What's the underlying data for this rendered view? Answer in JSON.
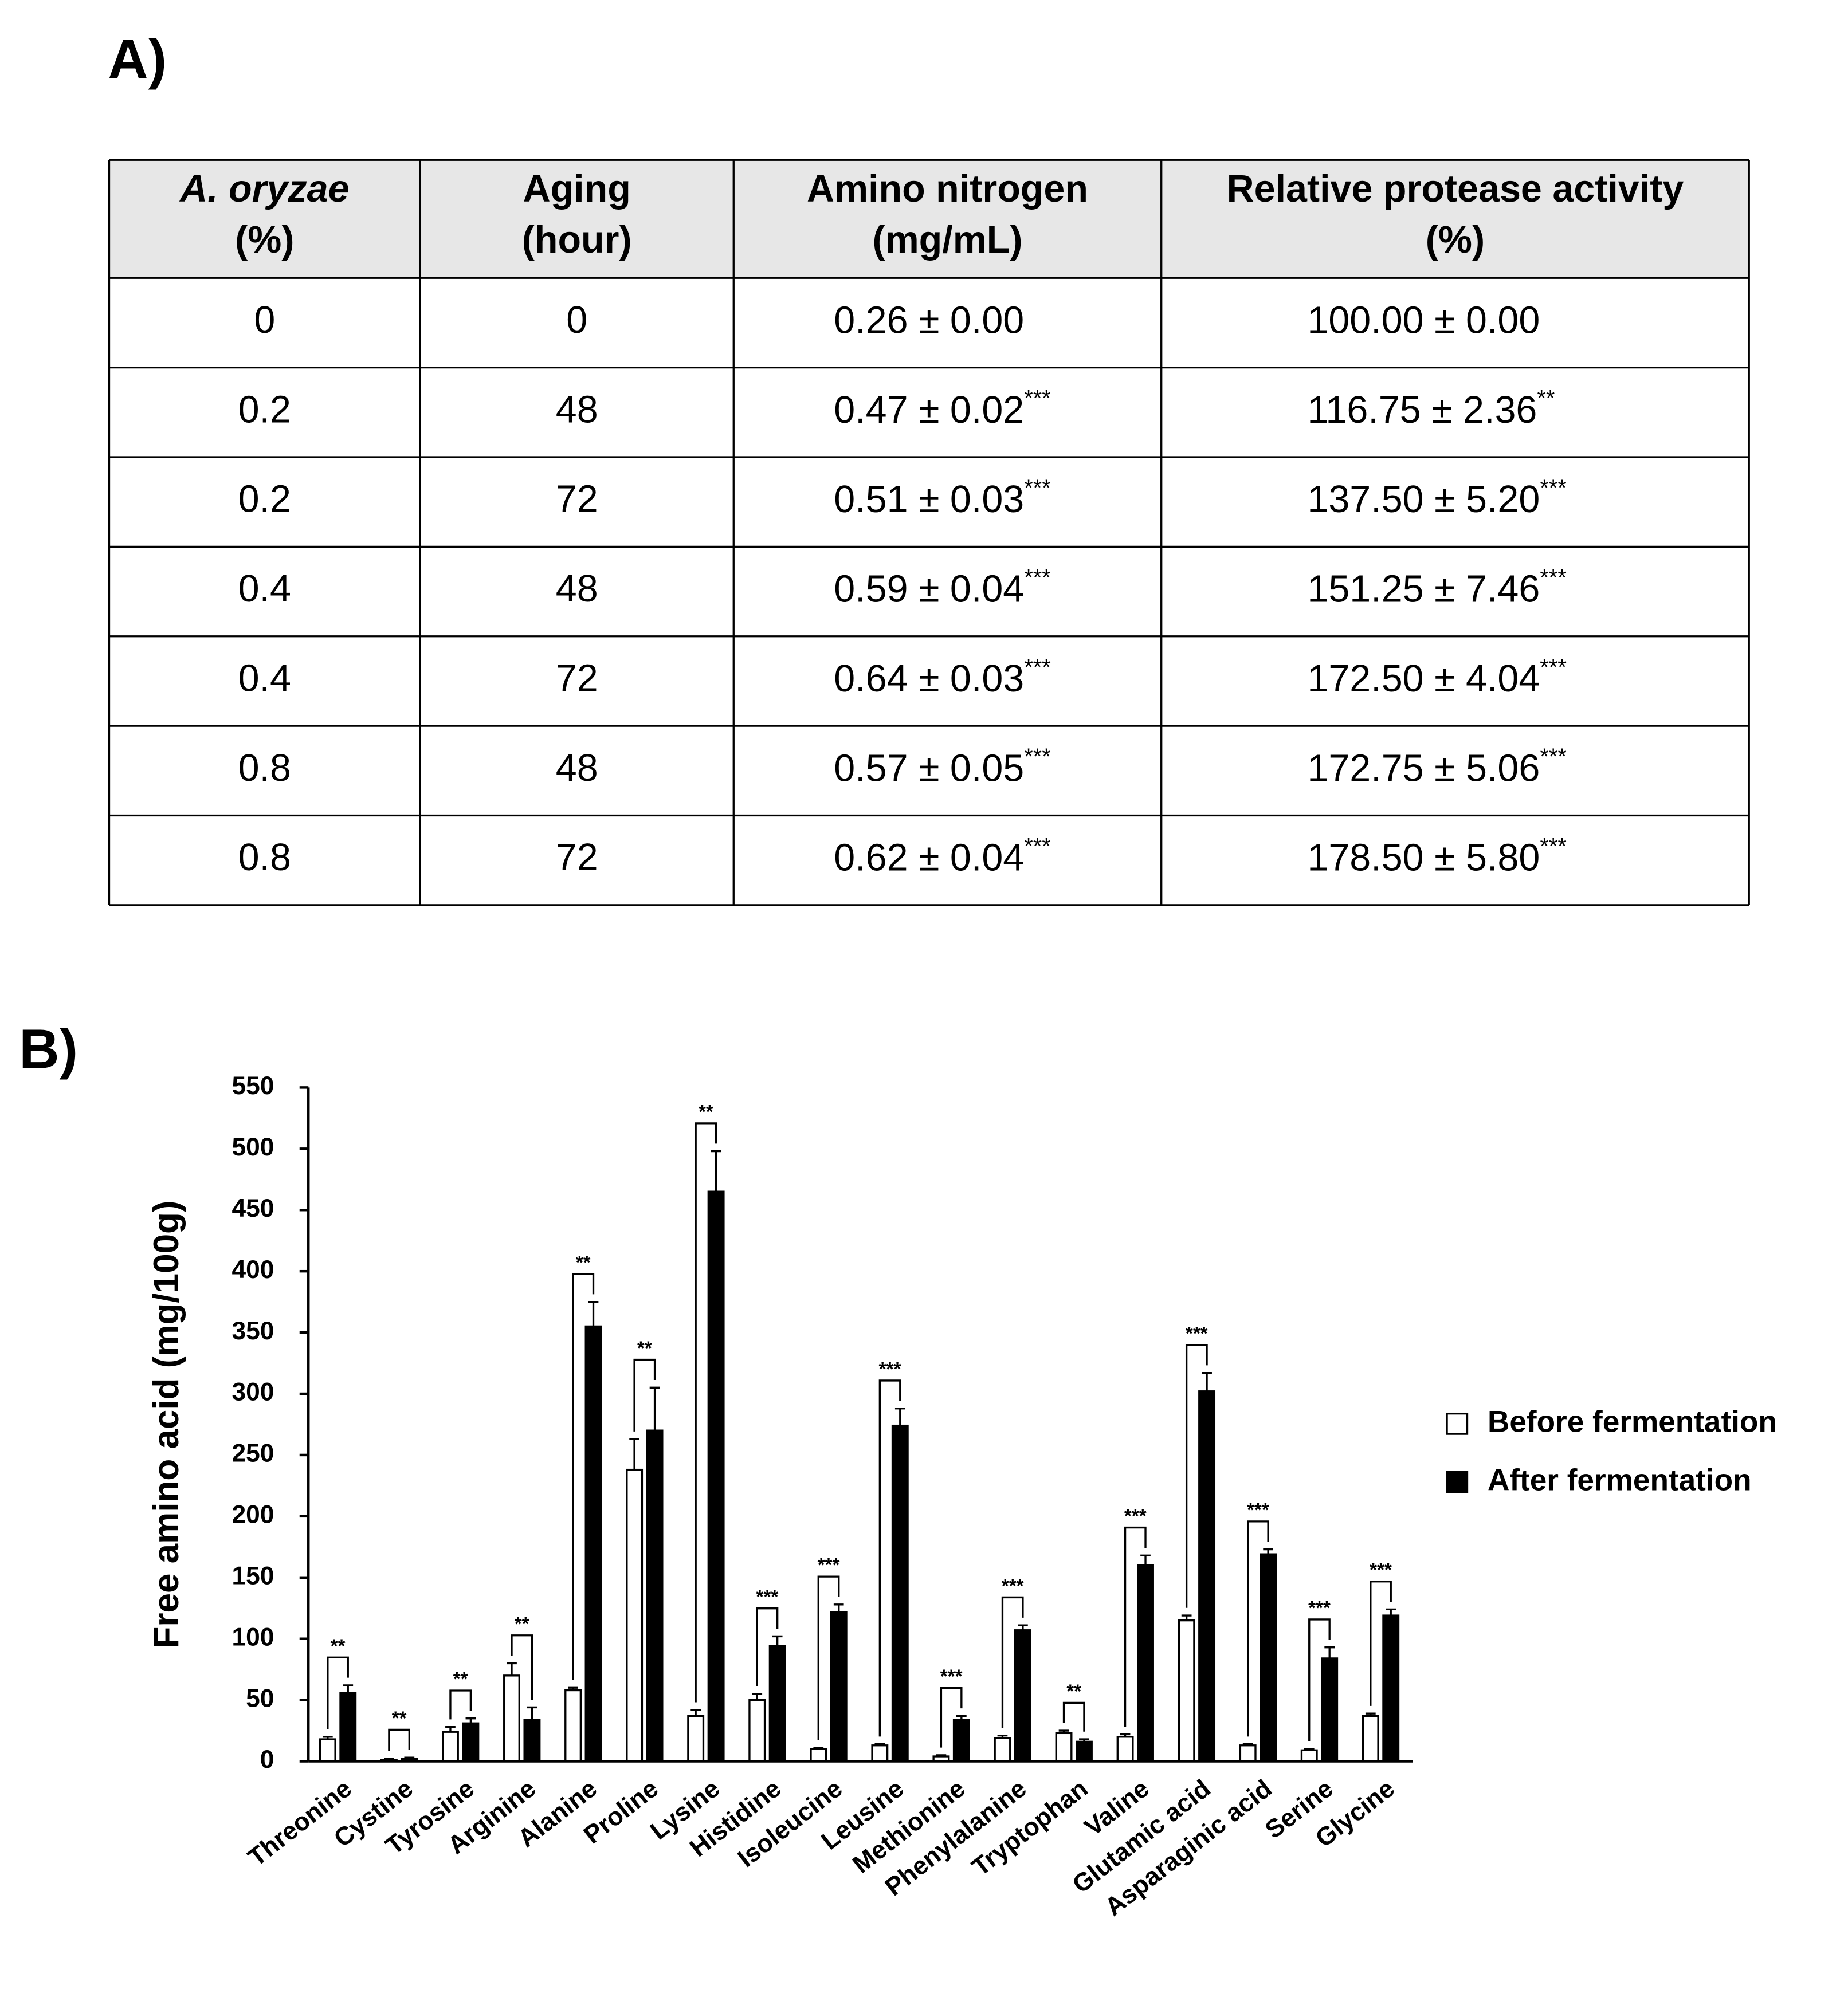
{
  "panel_a": {
    "label": "A)",
    "table": {
      "header": [
        [
          "A. oryzae",
          "(%)"
        ],
        [
          "Aging",
          "(hour)"
        ],
        [
          "Amino nitrogen",
          "(mg/mL)"
        ],
        [
          "Relative protease activity",
          "(%)"
        ]
      ],
      "rows": [
        {
          "cells": [
            "0",
            "0",
            "0.26 ± 0.00",
            "100.00 ± 0.00"
          ]
        },
        {
          "cells": [
            "0.2",
            "48",
            "0.47 ± 0.02",
            "116.75 ± 2.36"
          ],
          "marks": [
            "***",
            "**"
          ]
        },
        {
          "cells": [
            "0.2",
            "72",
            "0.51 ± 0.03",
            "137.50 ± 5.20"
          ],
          "marks": [
            "***",
            "***"
          ]
        },
        {
          "cells": [
            "0.4",
            "48",
            "0.59 ± 0.04",
            "151.25 ± 7.46"
          ],
          "marks": [
            "***",
            "***"
          ]
        },
        {
          "cells": [
            "0.4",
            "72",
            "0.64 ± 0.03",
            "172.50 ± 4.04"
          ],
          "marks": [
            "***",
            "***"
          ]
        },
        {
          "cells": [
            "0.8",
            "48",
            "0.57 ± 0.05",
            "172.75 ± 5.06"
          ],
          "marks": [
            "***",
            "***"
          ]
        },
        {
          "cells": [
            "0.8",
            "72",
            "0.62 ± 0.04",
            "178.50 ± 5.80"
          ],
          "marks": [
            "***",
            "***"
          ]
        }
      ]
    }
  },
  "chart_data": {
    "type": "bar",
    "panel_label": "B)",
    "y_label": "Free amino acid (mg/100g)",
    "categories": [
      "Threonine",
      "Cystine",
      "Tyrosine",
      "Arginine",
      "Alanine",
      "Proline",
      "Lysine",
      "Histidine",
      "Isoleucine",
      "Leusine",
      "Methionine",
      "Phenylalanine",
      "Tryptophan",
      "Valine",
      "Glutamic acid",
      "Asparaginic acid",
      "Serine",
      "Glycine"
    ],
    "series": [
      {
        "name": "Before fermentation",
        "color": "#ffffff",
        "values": [
          18,
          1,
          24,
          70,
          58,
          238,
          37,
          50,
          10,
          13,
          4,
          19,
          23,
          20,
          115,
          13,
          9,
          37
        ],
        "errors": [
          2,
          1,
          4,
          10,
          2,
          25,
          5,
          5,
          1,
          1,
          1,
          2,
          2,
          2,
          4,
          1,
          1,
          2
        ]
      },
      {
        "name": "After fermentation",
        "color": "#000000",
        "values": [
          56,
          2,
          31,
          34,
          355,
          270,
          465,
          94,
          122,
          274,
          34,
          107,
          16,
          160,
          302,
          169,
          84,
          119
        ],
        "errors": [
          6,
          1,
          4,
          10,
          20,
          35,
          33,
          8,
          6,
          14,
          3,
          4,
          2,
          8,
          15,
          4,
          9,
          5
        ]
      }
    ],
    "significance": [
      "**",
      "**",
      "**",
      "**",
      "**",
      "**",
      "**",
      "***",
      "***",
      "***",
      "***",
      "***",
      "**",
      "***",
      "***",
      "***",
      "***",
      "***"
    ],
    "ylim": [
      0,
      550
    ],
    "yticks": [
      0,
      50,
      100,
      150,
      200,
      250,
      300,
      350,
      400,
      450,
      500,
      550
    ],
    "grid": false,
    "legend": "right"
  }
}
